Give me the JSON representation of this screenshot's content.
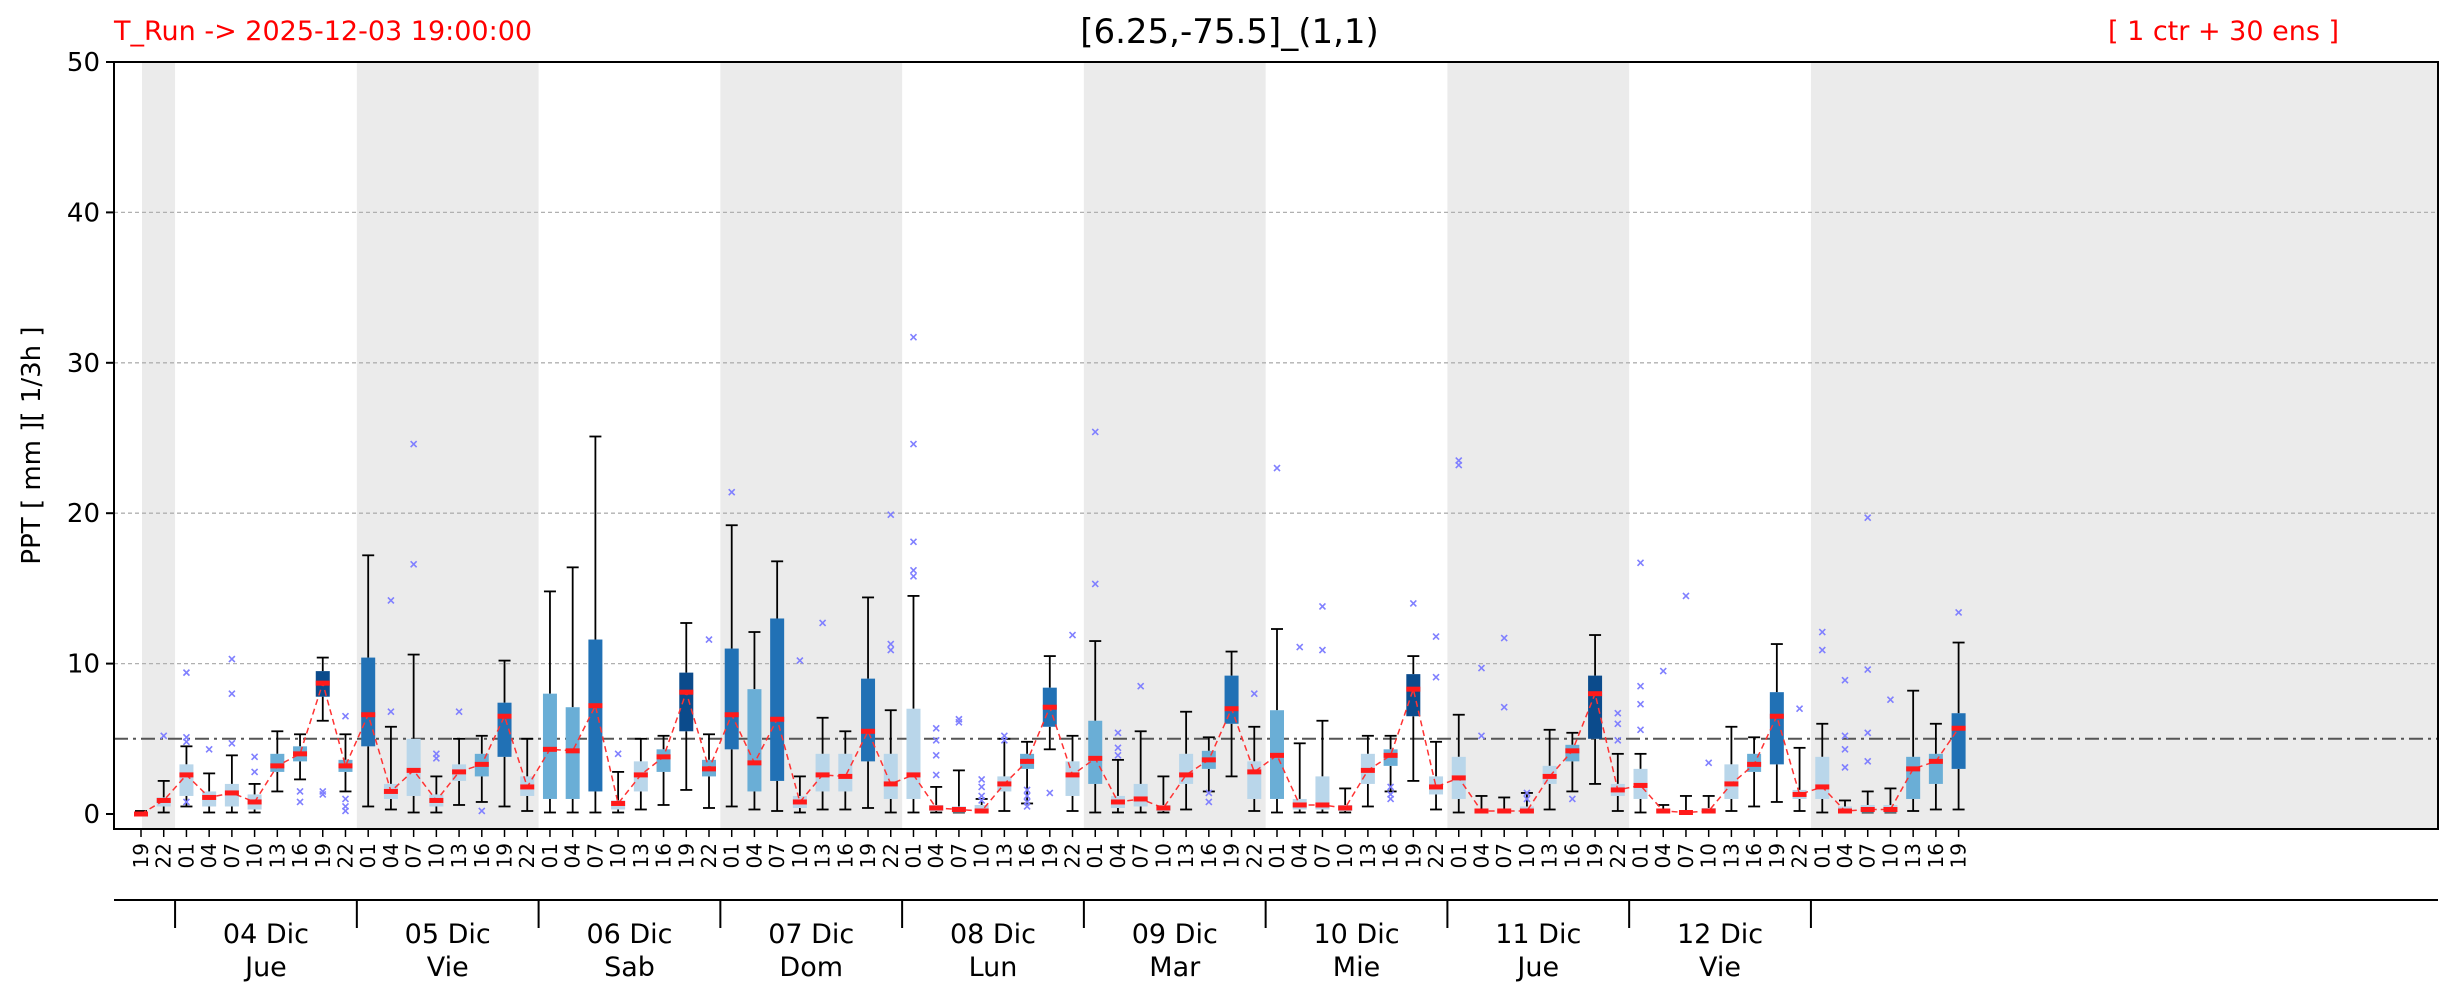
{
  "header": {
    "run_label": "T_Run -> 2025-12-03  19:00:00",
    "point_label": "[6.25,-75.5]_(1,1)",
    "members_label": "[ 1 ctr + 30 ens ]"
  },
  "colors": {
    "median": "#ff1a1a",
    "mean_line": "#ff3333",
    "outlier": "#8080ff",
    "threshold_line": "#555555",
    "night_shade": "#ebebeb",
    "box_light": "#b9d6ea",
    "box_mid": "#6aaed6",
    "box_dark": "#2171b5",
    "box_darkest": "#0b4b8c"
  },
  "chart_data": {
    "type": "box",
    "ylabel": "PPT  [ mm ][ 1/3h ]",
    "ylim": [
      0,
      50
    ],
    "yticks": [
      0,
      10,
      20,
      30,
      40,
      50
    ],
    "grid": true,
    "threshold": 5,
    "x_hours": [
      "19",
      "22",
      "01",
      "04",
      "07",
      "10",
      "13",
      "16",
      "19",
      "22",
      "01",
      "04",
      "07",
      "10",
      "13",
      "16",
      "19",
      "22",
      "01",
      "04",
      "07",
      "10",
      "13",
      "16",
      "19",
      "22",
      "01",
      "04",
      "07",
      "10",
      "13",
      "16",
      "19",
      "22",
      "01",
      "04",
      "07",
      "10",
      "13",
      "16",
      "19",
      "22",
      "01",
      "04",
      "07",
      "10",
      "13",
      "16",
      "19",
      "22",
      "01",
      "04",
      "07",
      "10",
      "13",
      "16",
      "19",
      "22",
      "01",
      "04",
      "07",
      "10",
      "13",
      "16",
      "19",
      "22",
      "01",
      "04",
      "07",
      "10",
      "13",
      "16",
      "19",
      "22",
      "01",
      "04",
      "07",
      "10",
      "13",
      "16",
      "19"
    ],
    "days": [
      {
        "date": "04 Dic",
        "weekday": "Jue"
      },
      {
        "date": "05 Dic",
        "weekday": "Vie"
      },
      {
        "date": "06 Dic",
        "weekday": "Sab"
      },
      {
        "date": "07 Dic",
        "weekday": "Dom"
      },
      {
        "date": "08 Dic",
        "weekday": "Lun"
      },
      {
        "date": "09 Dic",
        "weekday": "Mar"
      },
      {
        "date": "10 Dic",
        "weekday": "Mie"
      },
      {
        "date": "11 Dic",
        "weekday": "Jue"
      },
      {
        "date": "12 Dic",
        "weekday": "Vie"
      }
    ],
    "median": [
      0,
      0.9,
      2.6,
      1.1,
      1.4,
      0.8,
      3.2,
      4.0,
      8.7,
      3.2,
      6.6,
      1.5,
      2.9,
      0.9,
      2.8,
      3.3,
      6.5,
      1.8,
      4.3,
      4.2,
      7.2,
      0.7,
      2.6,
      3.8,
      8.1,
      3.0,
      6.6,
      3.4,
      6.3,
      0.8,
      2.6,
      2.5,
      5.5,
      2.0,
      2.6,
      0.4,
      0.3,
      0.2,
      2.0,
      3.5,
      7.1,
      2.6,
      3.7,
      0.8,
      1.0,
      0.4,
      2.6,
      3.6,
      7.0,
      2.8,
      3.9,
      0.6,
      0.6,
      0.4,
      2.9,
      3.9,
      8.3,
      1.8,
      2.4,
      0.2,
      0.2,
      0.2,
      2.5,
      4.2,
      8.0,
      1.6,
      1.9,
      0.2,
      0.1,
      0.2,
      2.0,
      3.3,
      6.5,
      1.3,
      1.8,
      0.2,
      0.3,
      0.3,
      3.0,
      3.5,
      5.7
    ],
    "q1": [
      0,
      0.5,
      1.2,
      0.5,
      0.5,
      0.3,
      2.8,
      3.5,
      7.8,
      2.8,
      4.5,
      1.0,
      1.2,
      0.5,
      2.2,
      2.5,
      3.8,
      1.2,
      1.0,
      1.0,
      1.5,
      0.3,
      1.5,
      2.8,
      5.5,
      2.5,
      4.3,
      1.5,
      2.2,
      0.4,
      1.5,
      1.5,
      3.5,
      1.0,
      1.0,
      0.2,
      0.1,
      0.1,
      1.5,
      3.0,
      5.8,
      1.2,
      2.0,
      0.4,
      0.5,
      0.2,
      2.0,
      3.0,
      6.0,
      1.0,
      1.0,
      0.3,
      0.3,
      0.2,
      2.0,
      3.2,
      6.5,
      1.3,
      1.0,
      0.1,
      0.1,
      0.1,
      2.0,
      3.5,
      5.0,
      1.2,
      1.0,
      0.1,
      0.1,
      0.1,
      1.0,
      2.8,
      3.3,
      1.0,
      1.0,
      0.1,
      0.1,
      0.1,
      1.0,
      2.0,
      3.0
    ],
    "q3": [
      0.1,
      1.1,
      3.3,
      1.5,
      2.0,
      1.3,
      4.0,
      4.5,
      9.5,
      3.6,
      10.4,
      2.0,
      5.0,
      1.3,
      3.3,
      4.0,
      7.4,
      2.5,
      8.0,
      7.1,
      11.6,
      0.9,
      3.5,
      4.3,
      9.4,
      3.6,
      11.0,
      8.3,
      13.0,
      1.2,
      4.0,
      4.0,
      9.0,
      4.0,
      7.0,
      0.6,
      0.5,
      0.6,
      2.5,
      4.0,
      8.4,
      3.5,
      6.2,
      1.2,
      2.0,
      0.6,
      4.0,
      4.2,
      9.2,
      3.5,
      6.9,
      1.0,
      2.5,
      0.6,
      4.0,
      4.3,
      9.3,
      2.5,
      3.8,
      0.3,
      0.3,
      0.5,
      3.2,
      4.6,
      9.2,
      2.0,
      3.0,
      0.3,
      0.2,
      0.4,
      3.3,
      4.0,
      8.1,
      1.6,
      3.8,
      0.5,
      0.6,
      0.6,
      3.8,
      4.0,
      6.7
    ],
    "whisker_low": [
      0,
      0.1,
      0.5,
      0.1,
      0.1,
      0.1,
      1.5,
      2.3,
      6.2,
      1.5,
      0.5,
      0.3,
      0.1,
      0.1,
      0.6,
      0.8,
      0.5,
      0.2,
      0.1,
      0.1,
      0.1,
      0.1,
      0.3,
      0.6,
      1.6,
      0.4,
      0.5,
      0.3,
      0.2,
      0.1,
      0.3,
      0.3,
      0.4,
      0.1,
      0.1,
      0.1,
      0.1,
      0.1,
      0.2,
      0.7,
      4.3,
      0.2,
      0.1,
      0.1,
      0.1,
      0.1,
      0.3,
      1.5,
      2.5,
      0.2,
      0.1,
      0.1,
      0.1,
      0.1,
      0.5,
      1.5,
      2.2,
      0.3,
      0.1,
      0.1,
      0.1,
      0.1,
      0.3,
      1.5,
      2.0,
      0.2,
      0.1,
      0.1,
      0.1,
      0.1,
      0.2,
      0.5,
      0.8,
      0.2,
      0.1,
      0.1,
      0.1,
      0.1,
      0.2,
      0.3,
      0.3
    ],
    "whisker_high": [
      0.2,
      2.2,
      4.5,
      2.7,
      3.9,
      2.0,
      5.5,
      5.3,
      10.4,
      5.3,
      17.2,
      5.8,
      10.6,
      2.5,
      5.0,
      5.2,
      10.2,
      5.0,
      14.8,
      16.4,
      25.1,
      2.8,
      5.0,
      5.2,
      12.7,
      5.3,
      19.2,
      12.1,
      16.8,
      2.5,
      6.4,
      5.5,
      14.4,
      6.9,
      14.5,
      1.8,
      2.9,
      1.0,
      5.0,
      4.8,
      10.5,
      5.2,
      11.5,
      3.6,
      5.5,
      2.5,
      6.8,
      5.1,
      10.8,
      5.8,
      12.3,
      4.7,
      6.2,
      1.7,
      5.2,
      5.2,
      10.5,
      4.8,
      6.6,
      1.2,
      1.1,
      1.4,
      5.6,
      5.4,
      11.9,
      4.0,
      4.0,
      0.6,
      1.2,
      1.2,
      5.8,
      5.1,
      11.3,
      4.4,
      6.0,
      0.9,
      1.5,
      1.7,
      8.2,
      6.0,
      11.4
    ],
    "outliers": [
      [],
      [
        5.2
      ],
      [
        9.4,
        5.1,
        4.8,
        0.8
      ],
      [
        4.3
      ],
      [
        10.3,
        8.0,
        4.7
      ],
      [
        3.8,
        2.8
      ],
      [],
      [
        1.5,
        0.8
      ],
      [
        1.5,
        1.3
      ],
      [
        6.5,
        1.0,
        0.5,
        0.2
      ],
      [],
      [
        14.2,
        6.8
      ],
      [
        24.6,
        16.6
      ],
      [
        4.0,
        3.7
      ],
      [
        6.8
      ],
      [
        0.2
      ],
      [],
      [],
      [],
      [],
      [],
      [
        4.0
      ],
      [],
      [],
      [],
      [
        11.6
      ],
      [
        21.4
      ],
      [],
      [],
      [
        10.2
      ],
      [
        12.7
      ],
      [],
      [],
      [
        19.9,
        11.3,
        10.9
      ],
      [
        31.7,
        24.6,
        18.1,
        16.2,
        15.8
      ],
      [
        5.7,
        4.9,
        3.9,
        2.6
      ],
      [
        6.3,
        6.1
      ],
      [
        2.3,
        1.8,
        1.2,
        0.9
      ],
      [
        5.2,
        4.9
      ],
      [
        1.6,
        1.2,
        0.8,
        0.5
      ],
      [
        1.4
      ],
      [
        11.9
      ],
      [
        25.4,
        15.3
      ],
      [
        5.4,
        4.4,
        3.9
      ],
      [
        8.5
      ],
      [],
      [],
      [
        1.4,
        0.8
      ],
      [],
      [
        8.0
      ],
      [
        23.0
      ],
      [
        11.1
      ],
      [
        13.8,
        10.9
      ],
      [],
      [],
      [
        1.8,
        1.3,
        1.0
      ],
      [
        14.0
      ],
      [
        11.8,
        9.1
      ],
      [
        23.5,
        23.2
      ],
      [
        9.7,
        5.2
      ],
      [
        11.7,
        7.1
      ],
      [
        1.4,
        1.0
      ],
      [],
      [
        1.0
      ],
      [],
      [
        6.7,
        6.0,
        4.9
      ],
      [
        16.7,
        8.5,
        7.3,
        5.6
      ],
      [
        9.5
      ],
      [
        14.5
      ],
      [
        3.4
      ],
      [],
      [],
      [],
      [
        7.0
      ],
      [
        12.1,
        10.9
      ],
      [
        8.9,
        5.2,
        4.3,
        3.1
      ],
      [
        19.7,
        9.6,
        5.4,
        3.5
      ],
      [
        7.6
      ],
      [],
      [],
      [
        13.4
      ]
    ]
  }
}
